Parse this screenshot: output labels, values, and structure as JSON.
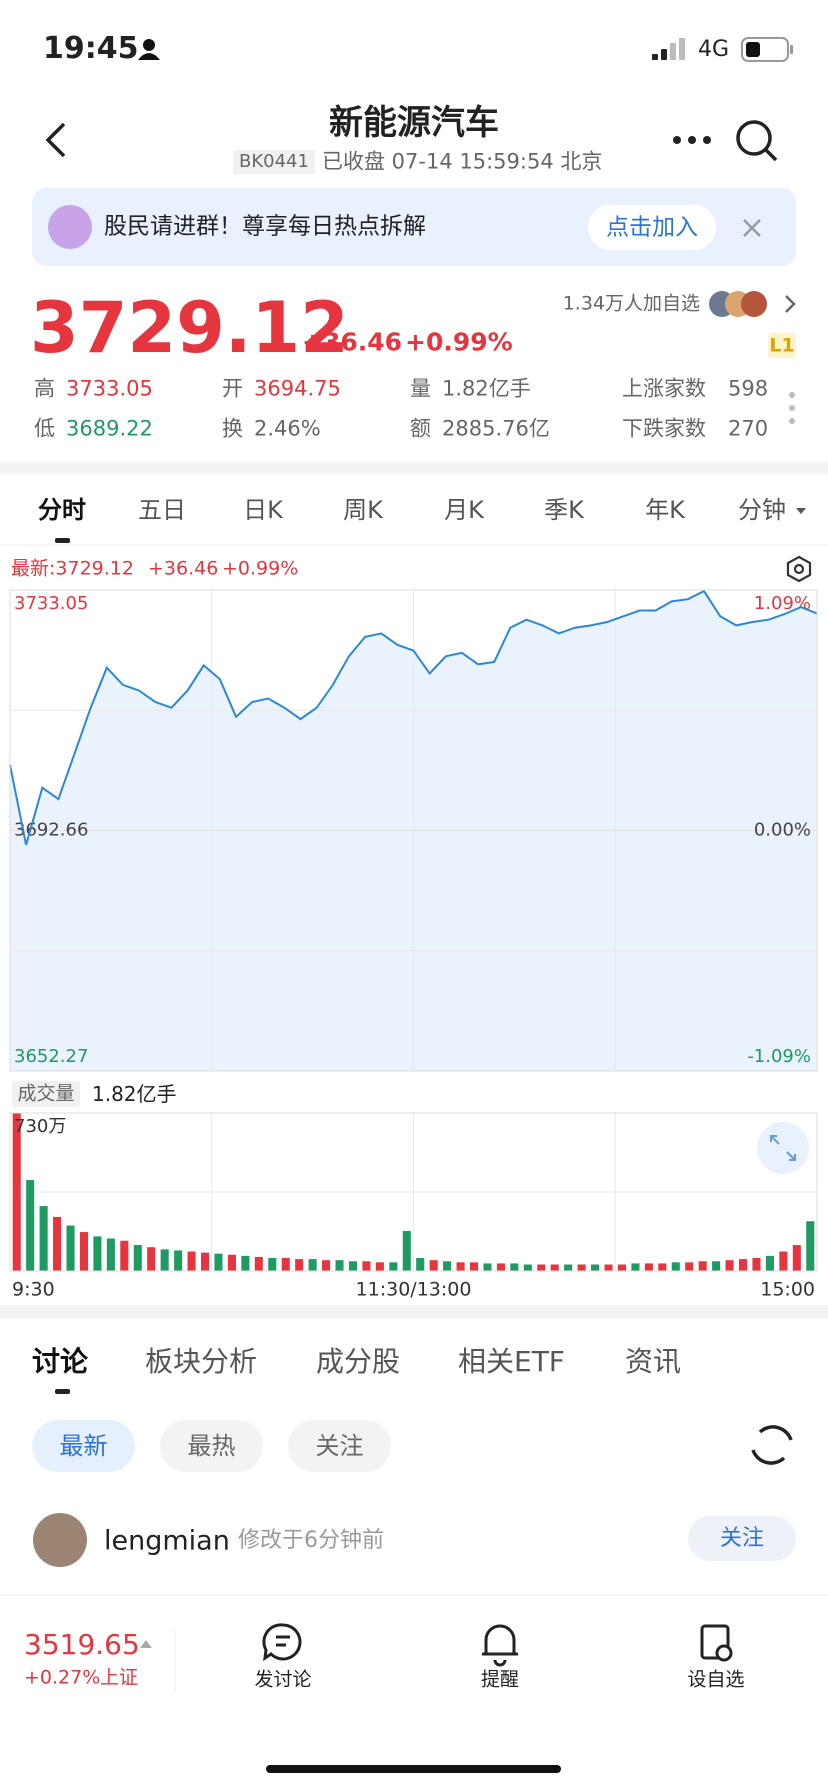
{
  "status": {
    "time": "19:45",
    "network": "4G"
  },
  "header": {
    "title": "新能源汽车",
    "code": "BK0441",
    "subtitle": "已收盘 07-14 15:59:54 北京"
  },
  "banner": {
    "text": "股民请进群！尊享每日热点拆解",
    "button": "点击加入"
  },
  "quote": {
    "price": "3729.12",
    "change": "+36.46",
    "percent": "+0.99%",
    "watchers": "1.34万人加自选",
    "level": "L1"
  },
  "stats": [
    [
      [
        "高",
        "3733.05"
      ],
      [
        "开",
        "3694.75"
      ],
      [
        "量",
        "1.82亿手"
      ],
      [
        "上涨家数",
        "598"
      ]
    ],
    [
      [
        "低",
        "3689.22"
      ],
      [
        "换",
        "2.46%"
      ],
      [
        "额",
        "2885.76亿"
      ],
      [
        "下跌家数",
        "270"
      ]
    ]
  ],
  "tabs": [
    "分时",
    "五日",
    "日K",
    "周K",
    "月K",
    "季K",
    "年K",
    "分钟"
  ],
  "latest": {
    "price": "最新:3729.12",
    "change": "+36.46",
    "percent": "+0.99%"
  },
  "volume_info": {
    "label": "成交量",
    "value": "1.82亿手"
  },
  "chart_data": [
    {
      "type": "line",
      "color": "#2c87d8",
      "values": [
        3703.69,
        3690.26,
        3699.85,
        3697.93,
        3705.61,
        3713.28,
        3720.0,
        3717.12,
        3716.16,
        3714.24,
        3713.28,
        3716.16,
        3720.38,
        3718.08,
        3711.75,
        3714.24,
        3714.82,
        3713.28,
        3711.37,
        3713.28,
        3717.12,
        3721.92,
        3725.18,
        3725.76,
        3723.84,
        3722.88,
        3719.04,
        3721.92,
        3722.5,
        3720.58,
        3720.96,
        3726.72,
        3728.06,
        3727.1,
        3725.76,
        3726.72,
        3727.1,
        3727.68,
        3728.64,
        3729.6,
        3729.6,
        3731.13,
        3731.51,
        3732.86,
        3728.64,
        3727.1,
        3727.68,
        3728.06,
        3729.02,
        3730.17,
        3729.12
      ],
      "ylim": [
        3652.27,
        3733.05
      ],
      "yticks": [
        3733.05,
        3692.66,
        3652.27
      ],
      "y2lim": [
        -1.09,
        1.09
      ],
      "y2ticks": [
        {
          "value": 1.09,
          "label": "1.09%"
        },
        {
          "value": 0,
          "label": "0.00%"
        },
        {
          "value": -1.09,
          "label": "-1.09%"
        }
      ]
    },
    {
      "type": "bar",
      "values": [
        730,
        420,
        300,
        250,
        210,
        180,
        160,
        150,
        140,
        120,
        110,
        100,
        95,
        90,
        85,
        80,
        75,
        70,
        65,
        60,
        60,
        55,
        55,
        50,
        50,
        45,
        45,
        40,
        40,
        185,
        60,
        50,
        45,
        40,
        40,
        35,
        35,
        35,
        30,
        30,
        30,
        30,
        30,
        30,
        30,
        30,
        35,
        35,
        35,
        40,
        40,
        45,
        45,
        50,
        55,
        60,
        70,
        90,
        120,
        230
      ],
      "colors": [
        "#e5363f",
        "#1f9a63",
        "#1f9a63",
        "#e5363f",
        "#1f9a63",
        "#e5363f",
        "#1f9a63",
        "#1f9a63",
        "#e5363f",
        "#1f9a63",
        "#e5363f",
        "#1f9a63",
        "#1f9a63",
        "#e5363f",
        "#e5363f",
        "#1f9a63",
        "#e5363f",
        "#1f9a63",
        "#e5363f",
        "#1f9a63",
        "#e5363f",
        "#e5363f",
        "#1f9a63",
        "#e5363f",
        "#1f9a63",
        "#1f9a63",
        "#e5363f",
        "#e5363f",
        "#1f9a63",
        "#1f9a63",
        "#1f9a63",
        "#e5363f",
        "#1f9a63",
        "#e5363f",
        "#e5363f",
        "#1f9a63",
        "#e5363f",
        "#1f9a63",
        "#1f9a63",
        "#e5363f",
        "#e5363f",
        "#1f9a63",
        "#e5363f",
        "#1f9a63",
        "#e5363f",
        "#e5363f",
        "#1f9a63",
        "#e5363f",
        "#e5363f",
        "#1f9a63",
        "#e5363f",
        "#e5363f",
        "#1f9a63",
        "#e5363f",
        "#e5363f",
        "#e5363f",
        "#1f9a63",
        "#e5363f",
        "#e5363f",
        "#1f9a63"
      ],
      "ylim": [
        0,
        730
      ],
      "yticks": [
        {
          "value": 730,
          "label": "730万"
        }
      ],
      "xlim": [
        0,
        240
      ],
      "xticks": [
        {
          "value": 0,
          "label": "9:30"
        },
        {
          "value": 120,
          "label": "11:30/13:00"
        },
        {
          "value": 240,
          "label": "15:00"
        }
      ]
    }
  ],
  "section_tabs": [
    "讨论",
    "板块分析",
    "成分股",
    "相关ETF",
    "资讯"
  ],
  "filters": [
    "最新",
    "最热",
    "关注"
  ],
  "post": {
    "user": "lengmian",
    "time": "修改于6分钟前",
    "follow": "关注"
  },
  "bottom_bar": {
    "index_value": "3519.65",
    "index_change": "+0.27%",
    "index_name": "上证",
    "actions": [
      "发讨论",
      "提醒",
      "设自选"
    ]
  }
}
